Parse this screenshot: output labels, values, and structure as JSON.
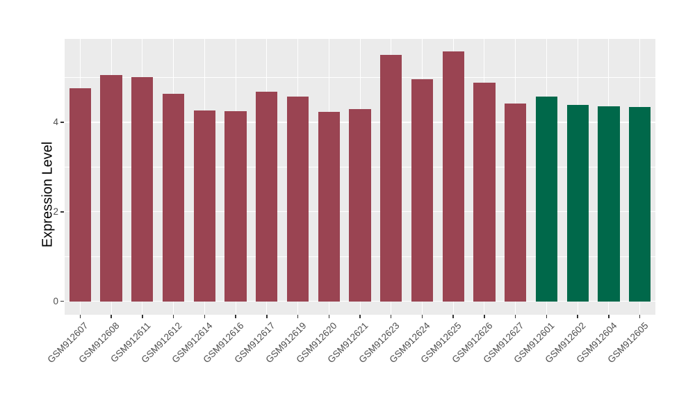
{
  "chart_data": {
    "type": "bar",
    "title": "",
    "xlabel": "",
    "ylabel": "Expression Level",
    "categories": [
      "GSM912607",
      "GSM912608",
      "GSM912611",
      "GSM912612",
      "GSM912614",
      "GSM912616",
      "GSM912617",
      "GSM912619",
      "GSM912620",
      "GSM912621",
      "GSM912623",
      "GSM912624",
      "GSM912625",
      "GSM912626",
      "GSM912627",
      "GSM912601",
      "GSM912602",
      "GSM912604",
      "GSM912605"
    ],
    "values": [
      4.76,
      5.05,
      5.01,
      4.64,
      4.26,
      4.25,
      4.68,
      4.57,
      4.23,
      4.3,
      5.5,
      4.96,
      5.58,
      4.88,
      4.42,
      4.57,
      4.39,
      4.36,
      4.34
    ],
    "bar_groups": [
      "group1",
      "group1",
      "group1",
      "group1",
      "group1",
      "group1",
      "group1",
      "group1",
      "group1",
      "group1",
      "group1",
      "group1",
      "group1",
      "group1",
      "group1",
      "group2",
      "group2",
      "group2",
      "group2"
    ],
    "group_colors": {
      "group1": "#9A4452",
      "group2": "#00684A"
    },
    "y_ticks": [
      0,
      2,
      4
    ],
    "y_tick_labels": [
      "0",
      "2",
      "4"
    ],
    "y_minor_ticks": [
      1,
      3,
      5
    ],
    "ylim": [
      -0.3,
      5.86
    ],
    "bar_width_ratio": 0.7,
    "grid": "on",
    "legend": "none",
    "panel_background": "#EBEBEB",
    "gridline_color": "#FFFFFF"
  }
}
